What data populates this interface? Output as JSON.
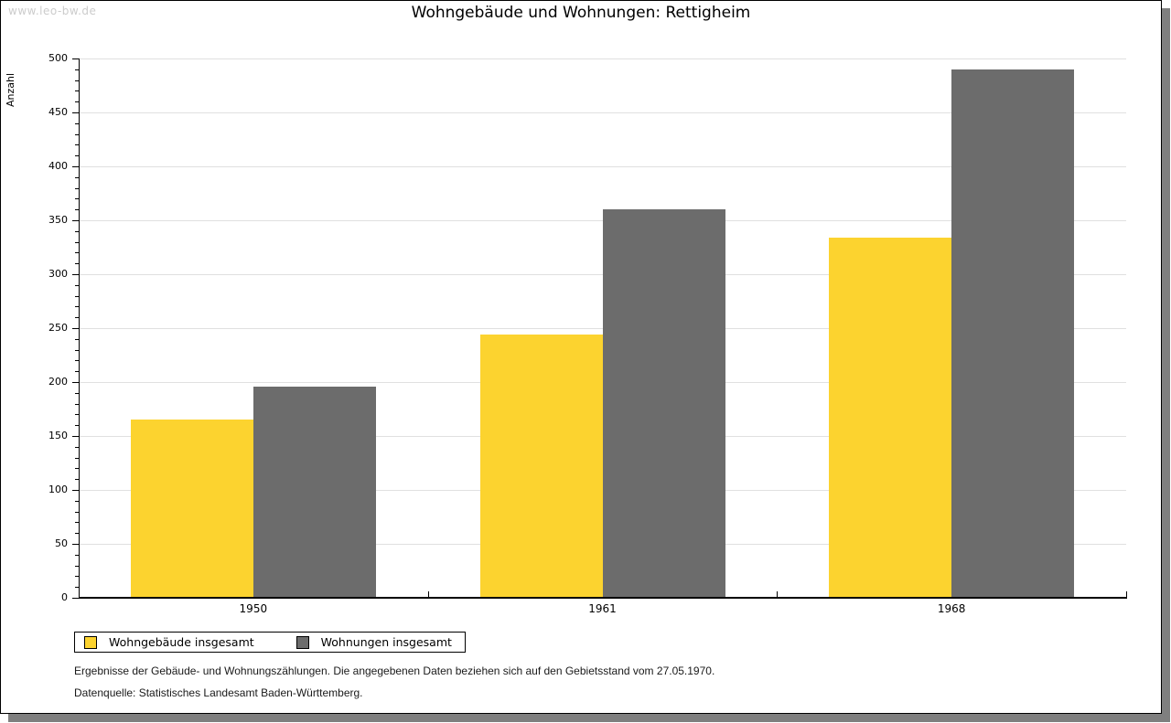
{
  "watermark": "www.leo-bw.de",
  "header": {
    "title": "Wohngebäude und Wohnungen: Rettigheim"
  },
  "chart_data": {
    "type": "bar",
    "title": "Wohngebäude und Wohnungen: Rettigheim",
    "xlabel": "",
    "ylabel": "Anzahl",
    "categories": [
      "1950",
      "1961",
      "1968"
    ],
    "series": [
      {
        "name": "Wohngebäude insgesamt",
        "color": "#FCD32F",
        "values": [
          165,
          244,
          334
        ]
      },
      {
        "name": "Wohnungen insgesamt",
        "color": "#6C6C6C",
        "values": [
          196,
          360,
          490
        ]
      }
    ],
    "ylim": [
      0,
      500
    ],
    "y_major_step": 50,
    "y_minor_step": 10,
    "grid": true,
    "legend_position": "bottom-left"
  },
  "footnotes": {
    "line1": "Ergebnisse der Gebäude- und Wohnungszählungen. Die angegebenen Daten beziehen sich auf den Gebietsstand vom 27.05.1970.",
    "line2": "Datenquelle: Statistisches Landesamt Baden-Württemberg."
  },
  "colors": {
    "gridline": "#e0e0e0",
    "axis": "#000000",
    "shadow": "#7f7f7f",
    "watermark": "#cccccc",
    "background": "#ffffff"
  }
}
